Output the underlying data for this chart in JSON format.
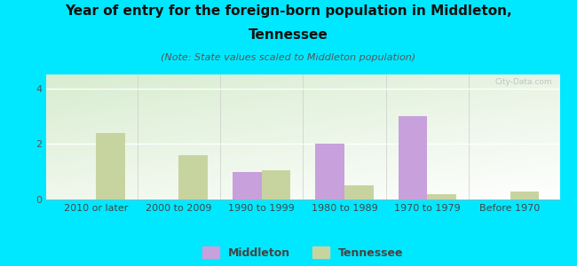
{
  "title_line1": "Year of entry for the foreign-born population in Middleton,",
  "title_line2": "Tennessee",
  "subtitle": "(Note: State values scaled to Middleton population)",
  "categories": [
    "2010 or later",
    "2000 to 2009",
    "1990 to 1999",
    "1980 to 1989",
    "1970 to 1979",
    "Before 1970"
  ],
  "middleton_values": [
    0,
    0,
    1.0,
    2.0,
    3.0,
    0
  ],
  "tennessee_values": [
    2.4,
    1.6,
    1.05,
    0.5,
    0.2,
    0.3
  ],
  "middleton_color": "#c8a0dc",
  "tennessee_color": "#c8d4a0",
  "background_color": "#00e8ff",
  "ylim": [
    0,
    4.5
  ],
  "yticks": [
    0,
    2,
    4
  ],
  "bar_width": 0.35,
  "watermark": "City-Data.com",
  "legend_middleton": "Middleton",
  "legend_tennessee": "Tennessee",
  "title_fontsize": 11,
  "subtitle_fontsize": 8,
  "tick_fontsize": 8,
  "legend_fontsize": 9
}
